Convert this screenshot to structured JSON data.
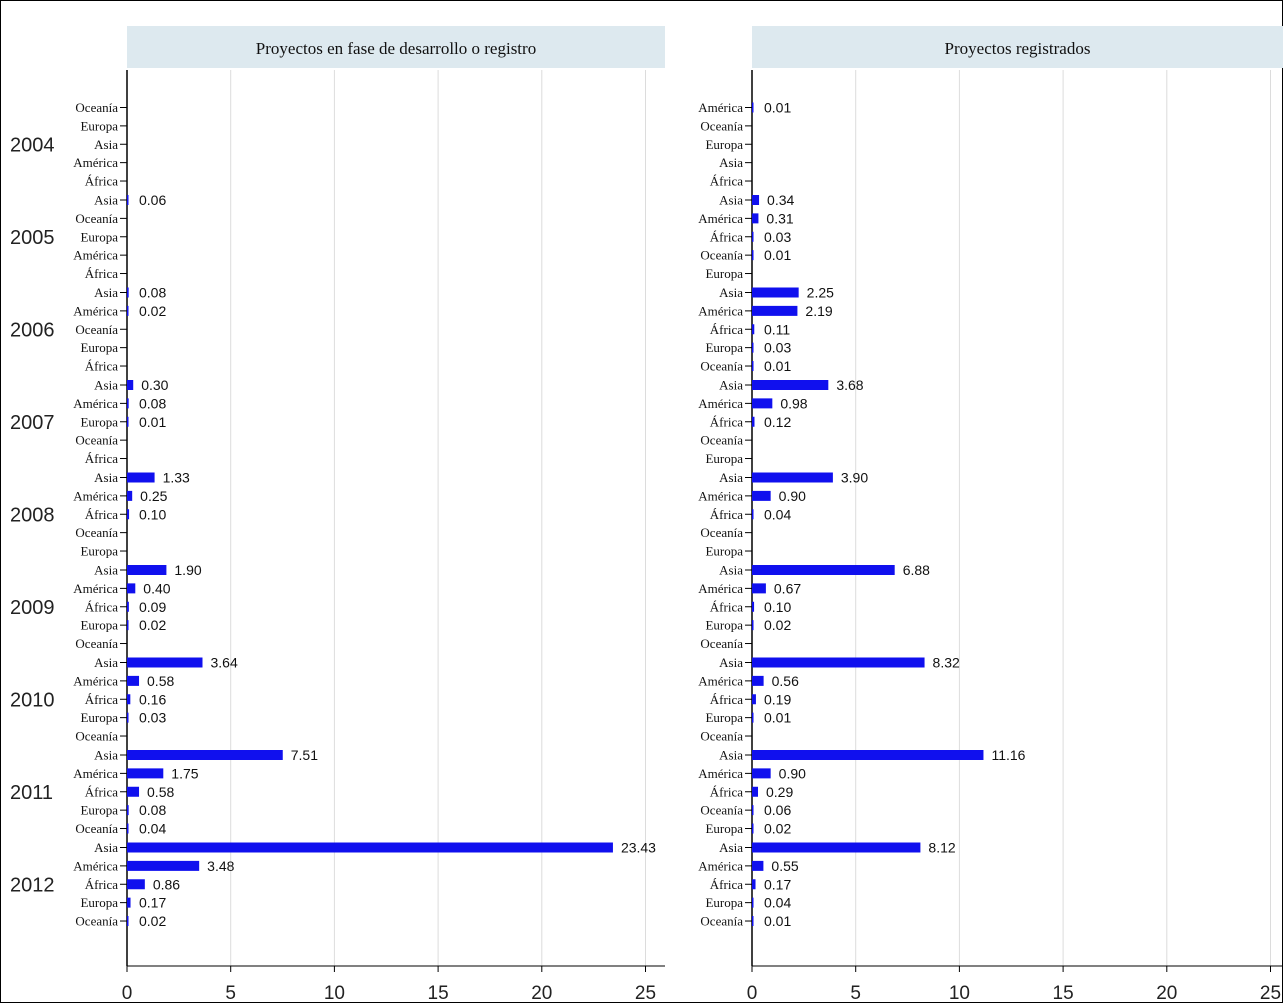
{
  "colors": {
    "bar": "#1010ee",
    "header_bg": "#dde9ef",
    "grid": "#dcdcdc",
    "axis": "#000000"
  },
  "chart_data": {
    "type": "bar",
    "orientation": "horizontal",
    "grid": true,
    "xlim": [
      0,
      25
    ],
    "x_ticks": [
      "0",
      "5",
      "10",
      "15",
      "20",
      "25"
    ],
    "panels": [
      {
        "title": "Proyectos en fase de desarrollo o registro",
        "groups": [
          {
            "year": "2004",
            "items": [
              {
                "region": "Oceanía",
                "value": null,
                "label": ""
              },
              {
                "region": "Europa",
                "value": null,
                "label": ""
              },
              {
                "region": "Asia",
                "value": null,
                "label": ""
              },
              {
                "region": "América",
                "value": null,
                "label": ""
              },
              {
                "region": "África",
                "value": null,
                "label": ""
              }
            ]
          },
          {
            "year": "2005",
            "items": [
              {
                "region": "Asia",
                "value": 0.06,
                "label": "0.06"
              },
              {
                "region": "Oceanía",
                "value": null,
                "label": ""
              },
              {
                "region": "Europa",
                "value": null,
                "label": ""
              },
              {
                "region": "América",
                "value": null,
                "label": ""
              },
              {
                "region": "África",
                "value": null,
                "label": ""
              }
            ]
          },
          {
            "year": "2006",
            "items": [
              {
                "region": "Asia",
                "value": 0.08,
                "label": "0.08"
              },
              {
                "region": "América",
                "value": 0.02,
                "label": "0.02"
              },
              {
                "region": "Oceanía",
                "value": null,
                "label": ""
              },
              {
                "region": "Europa",
                "value": null,
                "label": ""
              },
              {
                "region": "África",
                "value": null,
                "label": ""
              }
            ]
          },
          {
            "year": "2007",
            "items": [
              {
                "region": "Asia",
                "value": 0.3,
                "label": "0.30"
              },
              {
                "region": "América",
                "value": 0.08,
                "label": "0.08"
              },
              {
                "region": "Europa",
                "value": 0.01,
                "label": "0.01"
              },
              {
                "region": "Oceanía",
                "value": null,
                "label": ""
              },
              {
                "region": "África",
                "value": null,
                "label": ""
              }
            ]
          },
          {
            "year": "2008",
            "items": [
              {
                "region": "Asia",
                "value": 1.33,
                "label": "1.33"
              },
              {
                "region": "América",
                "value": 0.25,
                "label": "0.25"
              },
              {
                "region": "África",
                "value": 0.1,
                "label": "0.10"
              },
              {
                "region": "Oceanía",
                "value": null,
                "label": ""
              },
              {
                "region": "Europa",
                "value": null,
                "label": ""
              }
            ]
          },
          {
            "year": "2009",
            "items": [
              {
                "region": "Asia",
                "value": 1.9,
                "label": "1.90"
              },
              {
                "region": "América",
                "value": 0.4,
                "label": "0.40"
              },
              {
                "region": "África",
                "value": 0.09,
                "label": "0.09"
              },
              {
                "region": "Europa",
                "value": 0.02,
                "label": "0.02"
              },
              {
                "region": "Oceanía",
                "value": null,
                "label": ""
              }
            ]
          },
          {
            "year": "2010",
            "items": [
              {
                "region": "Asia",
                "value": 3.64,
                "label": "3.64"
              },
              {
                "region": "América",
                "value": 0.58,
                "label": "0.58"
              },
              {
                "region": "África",
                "value": 0.16,
                "label": "0.16"
              },
              {
                "region": "Europa",
                "value": 0.03,
                "label": "0.03"
              },
              {
                "region": "Oceanía",
                "value": null,
                "label": ""
              }
            ]
          },
          {
            "year": "2011",
            "items": [
              {
                "region": "Asia",
                "value": 7.51,
                "label": "7.51"
              },
              {
                "region": "América",
                "value": 1.75,
                "label": "1.75"
              },
              {
                "region": "África",
                "value": 0.58,
                "label": "0.58"
              },
              {
                "region": "Europa",
                "value": 0.08,
                "label": "0.08"
              },
              {
                "region": "Oceanía",
                "value": 0.04,
                "label": "0.04"
              }
            ]
          },
          {
            "year": "2012",
            "items": [
              {
                "region": "Asia",
                "value": 23.43,
                "label": "23.43"
              },
              {
                "region": "América",
                "value": 3.48,
                "label": "3.48"
              },
              {
                "region": "África",
                "value": 0.86,
                "label": "0.86"
              },
              {
                "region": "Europa",
                "value": 0.17,
                "label": "0.17"
              },
              {
                "region": "Oceanía",
                "value": 0.02,
                "label": "0.02"
              }
            ]
          }
        ]
      },
      {
        "title": "Proyectos registrados",
        "groups": [
          {
            "year": "",
            "items": [
              {
                "region": "América",
                "value": 0.01,
                "label": "0.01"
              },
              {
                "region": "Oceanía",
                "value": null,
                "label": ""
              },
              {
                "region": "Europa",
                "value": null,
                "label": ""
              },
              {
                "region": "Asia",
                "value": null,
                "label": ""
              },
              {
                "region": "África",
                "value": null,
                "label": ""
              }
            ]
          },
          {
            "year": "",
            "items": [
              {
                "region": "Asia",
                "value": 0.34,
                "label": "0.34"
              },
              {
                "region": "América",
                "value": 0.31,
                "label": "0.31"
              },
              {
                "region": "África",
                "value": 0.03,
                "label": "0.03"
              },
              {
                "region": "Oceanía",
                "value": 0.01,
                "label": "0.01"
              },
              {
                "region": "Europa",
                "value": null,
                "label": ""
              }
            ]
          },
          {
            "year": "",
            "items": [
              {
                "region": "Asia",
                "value": 2.25,
                "label": "2.25"
              },
              {
                "region": "América",
                "value": 2.19,
                "label": "2.19"
              },
              {
                "region": "África",
                "value": 0.11,
                "label": "0.11"
              },
              {
                "region": "Europa",
                "value": 0.03,
                "label": "0.03"
              },
              {
                "region": "Oceanía",
                "value": 0.01,
                "label": "0.01"
              }
            ]
          },
          {
            "year": "",
            "items": [
              {
                "region": "Asia",
                "value": 3.68,
                "label": "3.68"
              },
              {
                "region": "América",
                "value": 0.98,
                "label": "0.98"
              },
              {
                "region": "África",
                "value": 0.12,
                "label": "0.12"
              },
              {
                "region": "Oceanía",
                "value": null,
                "label": ""
              },
              {
                "region": "Europa",
                "value": null,
                "label": ""
              }
            ]
          },
          {
            "year": "",
            "items": [
              {
                "region": "Asia",
                "value": 3.9,
                "label": "3.90"
              },
              {
                "region": "América",
                "value": 0.9,
                "label": "0.90"
              },
              {
                "region": "África",
                "value": 0.04,
                "label": "0.04"
              },
              {
                "region": "Oceanía",
                "value": null,
                "label": ""
              },
              {
                "region": "Europa",
                "value": null,
                "label": ""
              }
            ]
          },
          {
            "year": "",
            "items": [
              {
                "region": "Asia",
                "value": 6.88,
                "label": "6.88"
              },
              {
                "region": "América",
                "value": 0.67,
                "label": "0.67"
              },
              {
                "region": "África",
                "value": 0.1,
                "label": "0.10"
              },
              {
                "region": "Europa",
                "value": 0.02,
                "label": "0.02"
              },
              {
                "region": "Oceanía",
                "value": null,
                "label": ""
              }
            ]
          },
          {
            "year": "",
            "items": [
              {
                "region": "Asia",
                "value": 8.32,
                "label": "8.32"
              },
              {
                "region": "América",
                "value": 0.56,
                "label": "0.56"
              },
              {
                "region": "África",
                "value": 0.19,
                "label": "0.19"
              },
              {
                "region": "Europa",
                "value": 0.01,
                "label": "0.01"
              },
              {
                "region": "Oceanía",
                "value": null,
                "label": ""
              }
            ]
          },
          {
            "year": "",
            "items": [
              {
                "region": "Asia",
                "value": 11.16,
                "label": "11.16"
              },
              {
                "region": "América",
                "value": 0.9,
                "label": "0.90"
              },
              {
                "region": "África",
                "value": 0.29,
                "label": "0.29"
              },
              {
                "region": "Oceanía",
                "value": 0.06,
                "label": "0.06"
              },
              {
                "region": "Europa",
                "value": 0.02,
                "label": "0.02"
              }
            ]
          },
          {
            "year": "",
            "items": [
              {
                "region": "Asia",
                "value": 8.12,
                "label": "8.12"
              },
              {
                "region": "América",
                "value": 0.55,
                "label": "0.55"
              },
              {
                "region": "África",
                "value": 0.17,
                "label": "0.17"
              },
              {
                "region": "Europa",
                "value": 0.04,
                "label": "0.04"
              },
              {
                "region": "Oceanía",
                "value": 0.01,
                "label": "0.01"
              }
            ]
          }
        ]
      }
    ]
  }
}
